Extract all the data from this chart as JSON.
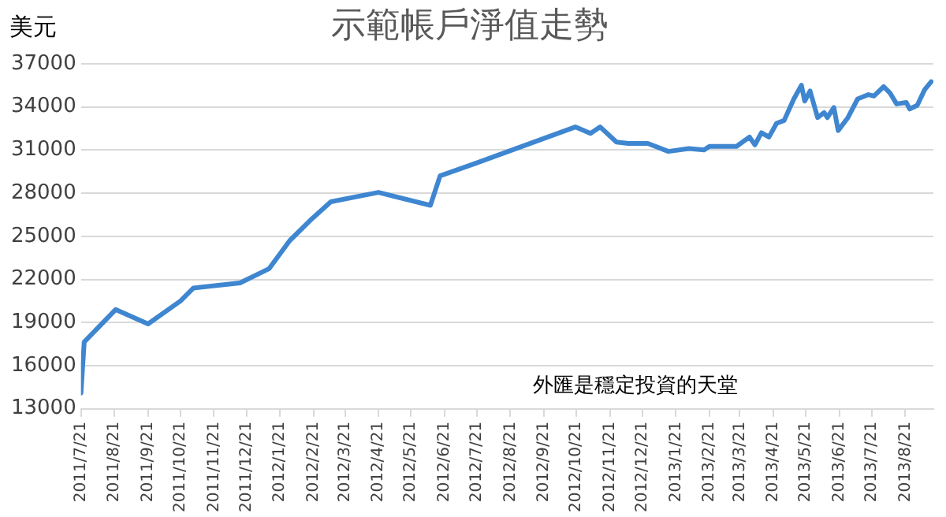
{
  "chart_data": {
    "type": "line",
    "title": "示範帳戶淨值走勢",
    "ylabel": "美元",
    "annotations": [
      "外匯是穩定投資的天堂"
    ],
    "x": [
      "2011-07-21",
      "2011-07-24",
      "2011-08-22",
      "2011-09-21",
      "2011-10-21",
      "2011-11-02",
      "2011-12-15",
      "2012-01-11",
      "2012-01-30",
      "2012-02-20",
      "2012-03-08",
      "2012-04-21",
      "2012-06-08",
      "2012-06-17",
      "2012-07-21",
      "2012-10-20",
      "2012-11-03",
      "2012-11-12",
      "2012-11-27",
      "2012-12-08",
      "2012-12-26",
      "2013-01-14",
      "2013-02-02",
      "2013-02-16",
      "2013-02-21",
      "2013-03-18",
      "2013-03-30",
      "2013-04-04",
      "2013-04-10",
      "2013-04-17",
      "2013-04-24",
      "2013-05-01",
      "2013-05-10",
      "2013-05-17",
      "2013-05-20",
      "2013-05-25",
      "2013-06-01",
      "2013-06-07",
      "2013-06-10",
      "2013-06-16",
      "2013-06-20",
      "2013-06-29",
      "2013-07-08",
      "2013-07-18",
      "2013-07-23",
      "2013-08-01",
      "2013-08-07",
      "2013-08-13",
      "2013-08-22",
      "2013-08-25",
      "2013-09-01",
      "2013-09-08",
      "2013-09-14"
    ],
    "series": [
      {
        "color": "#3f86d0",
        "values": [
          14100,
          17650,
          19900,
          18900,
          20500,
          21400,
          21750,
          22750,
          24700,
          26250,
          27400,
          28050,
          27150,
          29200,
          30100,
          32600,
          32150,
          32600,
          31550,
          31450,
          31450,
          30900,
          31100,
          31000,
          31250,
          31250,
          31900,
          31350,
          32200,
          31900,
          32850,
          33050,
          34550,
          35500,
          34400,
          35100,
          33250,
          33600,
          33250,
          33950,
          32350,
          33250,
          34550,
          34850,
          34750,
          35400,
          34950,
          34200,
          34300,
          33850,
          34100,
          35200,
          35750
        ]
      }
    ],
    "xlim": [
      "2011-07-21",
      "2013-09-16"
    ],
    "xticks": [
      {
        "value": "2011-07-21",
        "label": "2011/7/21"
      },
      {
        "value": "2011-08-21",
        "label": "2011/8/21"
      },
      {
        "value": "2011-09-21",
        "label": "2011/9/21"
      },
      {
        "value": "2011-10-21",
        "label": "2011/10/21"
      },
      {
        "value": "2011-11-21",
        "label": "2011/11/21"
      },
      {
        "value": "2011-12-21",
        "label": "2011/12/21"
      },
      {
        "value": "2012-01-21",
        "label": "2012/1/21"
      },
      {
        "value": "2012-02-21",
        "label": "2012/2/21"
      },
      {
        "value": "2012-03-21",
        "label": "2012/3/21"
      },
      {
        "value": "2012-04-21",
        "label": "2012/4/21"
      },
      {
        "value": "2012-05-21",
        "label": "2012/5/21"
      },
      {
        "value": "2012-06-21",
        "label": "2012/6/21"
      },
      {
        "value": "2012-07-21",
        "label": "2012/7/21"
      },
      {
        "value": "2012-08-21",
        "label": "2012/8/21"
      },
      {
        "value": "2012-09-21",
        "label": "2012/9/21"
      },
      {
        "value": "2012-10-21",
        "label": "2012/10/21"
      },
      {
        "value": "2012-11-21",
        "label": "2012/11/21"
      },
      {
        "value": "2012-12-21",
        "label": "2012/12/21"
      },
      {
        "value": "2013-01-21",
        "label": "2013/1/21"
      },
      {
        "value": "2013-02-21",
        "label": "2013/2/21"
      },
      {
        "value": "2013-03-21",
        "label": "2013/3/21"
      },
      {
        "value": "2013-04-21",
        "label": "2013/4/21"
      },
      {
        "value": "2013-05-21",
        "label": "2013/5/21"
      },
      {
        "value": "2013-06-21",
        "label": "2013/6/21"
      },
      {
        "value": "2013-07-21",
        "label": "2013/7/21"
      },
      {
        "value": "2013-08-21",
        "label": "2013/8/21"
      }
    ],
    "ylim": [
      13000,
      37000
    ],
    "yticks": [
      13000,
      16000,
      19000,
      22000,
      25000,
      28000,
      31000,
      34000,
      37000
    ],
    "grid": "y",
    "legend": false,
    "marker": "none",
    "line_style": "solid"
  }
}
